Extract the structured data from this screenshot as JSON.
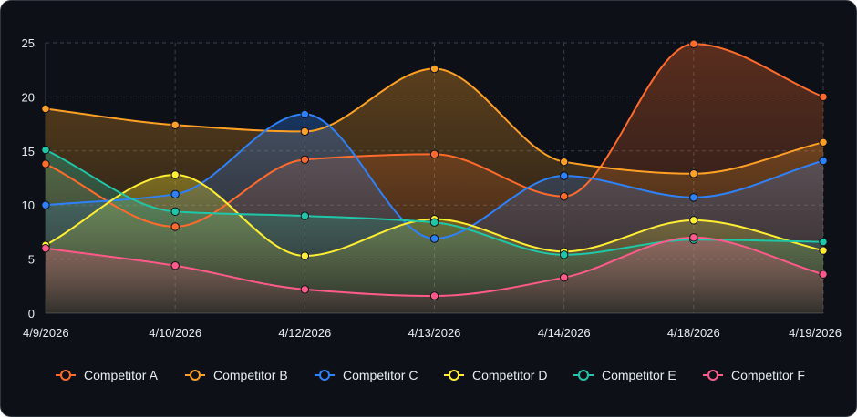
{
  "chart_data": {
    "type": "area",
    "title": "",
    "xlabel": "",
    "ylabel": "",
    "ylim": [
      0,
      25
    ],
    "yticks": [
      0,
      5,
      10,
      15,
      20,
      25
    ],
    "grid": true,
    "legend_position": "bottom",
    "categories": [
      "4/9/2026",
      "4/10/2026",
      "4/12/2026",
      "4/13/2026",
      "4/14/2026",
      "4/18/2026",
      "4/19/2026"
    ],
    "series": [
      {
        "name": "Competitor A",
        "color": "#ff6b2c",
        "values": [
          13.8,
          8.0,
          14.2,
          14.7,
          10.8,
          24.9,
          20.0
        ]
      },
      {
        "name": "Competitor B",
        "color": "#ffa026",
        "values": [
          18.9,
          17.4,
          16.8,
          22.6,
          14.0,
          12.9,
          15.8
        ]
      },
      {
        "name": "Competitor C",
        "color": "#2f81f7",
        "values": [
          10.0,
          11.0,
          18.4,
          6.9,
          12.7,
          10.7,
          14.1
        ]
      },
      {
        "name": "Competitor D",
        "color": "#ffee33",
        "values": [
          6.3,
          12.8,
          5.3,
          8.7,
          5.7,
          8.6,
          5.8
        ]
      },
      {
        "name": "Competitor E",
        "color": "#1fc7a8",
        "values": [
          15.1,
          9.4,
          9.0,
          8.4,
          5.4,
          6.8,
          6.6
        ]
      },
      {
        "name": "Competitor F",
        "color": "#ff5a8a",
        "values": [
          6.0,
          4.4,
          2.2,
          1.6,
          3.3,
          7.0,
          3.6
        ]
      }
    ]
  }
}
